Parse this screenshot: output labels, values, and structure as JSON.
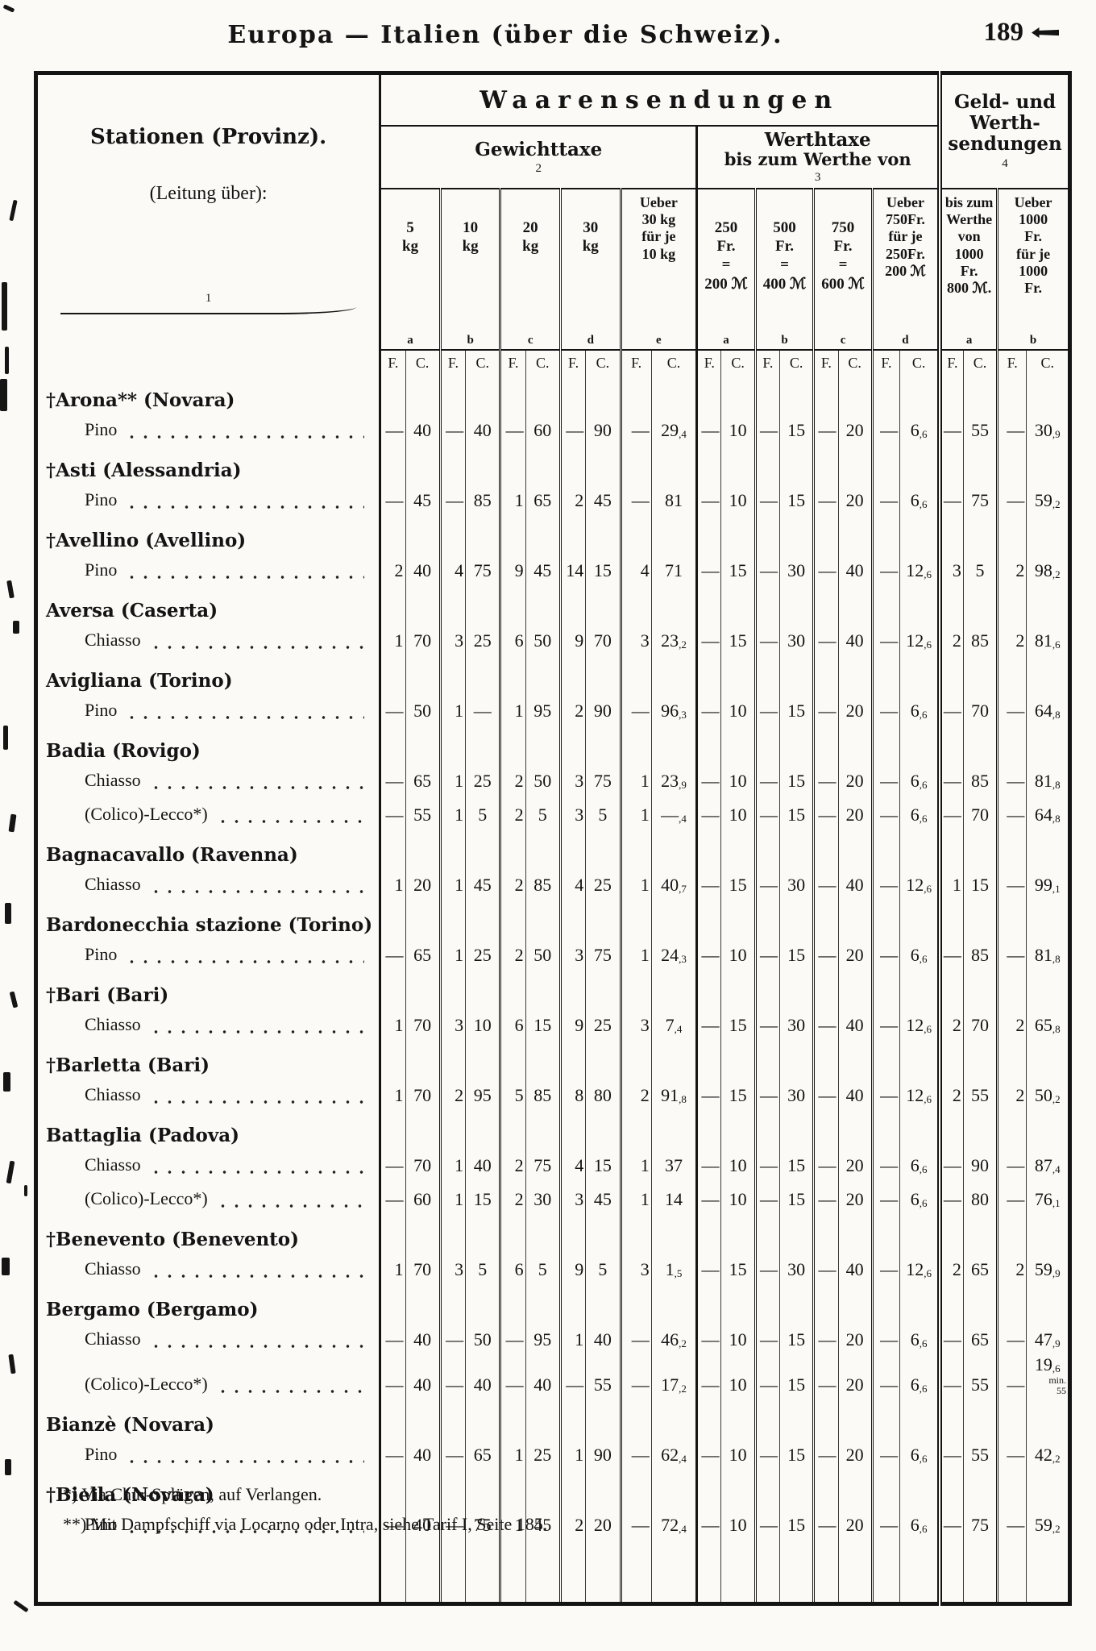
{
  "page": {
    "title": "Europa — Italien (über die Schweiz).",
    "number": "189"
  },
  "header": {
    "station_col": {
      "line1": "Stationen (Provinz).",
      "line2": "(Leitung über):",
      "col_no": "1"
    },
    "waaren_label": "Waarensendungen",
    "gewicht": {
      "label": "Gewichttaxe",
      "col_no": "2",
      "columns": [
        {
          "label": "5\nkg",
          "letter": "a"
        },
        {
          "label": "10\nkg",
          "letter": "b"
        },
        {
          "label": "20\nkg",
          "letter": "c"
        },
        {
          "label": "30\nkg",
          "letter": "d"
        },
        {
          "label": "Ueber\n30 kg\nfür je\n10 kg",
          "letter": "e"
        }
      ]
    },
    "werth": {
      "label": "Werthtaxe",
      "sublabel": "bis zum Werthe von",
      "col_no": "3",
      "columns": [
        {
          "label": "250\nFr.\n=\n200 ℳ",
          "letter": "a"
        },
        {
          "label": "500\nFr.\n=\n400 ℳ",
          "letter": "b"
        },
        {
          "label": "750\nFr.\n=\n600 ℳ",
          "letter": "c"
        },
        {
          "label": "Ueber\n750Fr.\nfür je\n250Fr.\n200 ℳ",
          "letter": "d"
        }
      ]
    },
    "geld": {
      "label": "Geld- und\nWerth-\nsendungen",
      "col_no": "4",
      "columns": [
        {
          "label": "bis zum\nWerthe\nvon\n1000\nFr.\n800 ℳ.",
          "letter": "a"
        },
        {
          "label": "Ueber\n1000\nFr.\nfür je\n1000\nFr.",
          "letter": "b"
        }
      ]
    },
    "fc": {
      "f": "F.",
      "c": "C."
    }
  },
  "stations": [
    {
      "title": "†Arona** (Novara)",
      "routes": [
        {
          "label": "Pino",
          "values": [
            [
              "—",
              "40"
            ],
            [
              "—",
              "40"
            ],
            [
              "—",
              "60"
            ],
            [
              "—",
              "90"
            ],
            [
              "—",
              "29,4"
            ],
            [
              "—",
              "10"
            ],
            [
              "—",
              "15"
            ],
            [
              "—",
              "20"
            ],
            [
              "—",
              "6,6"
            ],
            [
              "—",
              "55"
            ],
            [
              "—",
              "30,9"
            ]
          ]
        }
      ]
    },
    {
      "title": "†Asti (Alessandria)",
      "routes": [
        {
          "label": "Pino",
          "values": [
            [
              "—",
              "45"
            ],
            [
              "—",
              "85"
            ],
            [
              "1",
              "65"
            ],
            [
              "2",
              "45"
            ],
            [
              "—",
              "81"
            ],
            [
              "—",
              "10"
            ],
            [
              "—",
              "15"
            ],
            [
              "—",
              "20"
            ],
            [
              "—",
              "6,6"
            ],
            [
              "—",
              "75"
            ],
            [
              "—",
              "59,2"
            ]
          ]
        }
      ]
    },
    {
      "title": "†Avellino (Avellino)",
      "routes": [
        {
          "label": "Pino",
          "values": [
            [
              "2",
              "40"
            ],
            [
              "4",
              "75"
            ],
            [
              "9",
              "45"
            ],
            [
              "14",
              "15"
            ],
            [
              "4",
              "71"
            ],
            [
              "—",
              "15"
            ],
            [
              "—",
              "30"
            ],
            [
              "—",
              "40"
            ],
            [
              "—",
              "12,6"
            ],
            [
              "3",
              "5"
            ],
            [
              "2",
              "98,2"
            ]
          ]
        }
      ]
    },
    {
      "title": "Aversa (Caserta)",
      "routes": [
        {
          "label": "Chiasso",
          "values": [
            [
              "1",
              "70"
            ],
            [
              "3",
              "25"
            ],
            [
              "6",
              "50"
            ],
            [
              "9",
              "70"
            ],
            [
              "3",
              "23,2"
            ],
            [
              "—",
              "15"
            ],
            [
              "—",
              "30"
            ],
            [
              "—",
              "40"
            ],
            [
              "—",
              "12,6"
            ],
            [
              "2",
              "85"
            ],
            [
              "2",
              "81,6"
            ]
          ]
        }
      ]
    },
    {
      "title": "Avigliana (Torino)",
      "routes": [
        {
          "label": "Pino",
          "values": [
            [
              "—",
              "50"
            ],
            [
              "1",
              "—"
            ],
            [
              "1",
              "95"
            ],
            [
              "2",
              "90"
            ],
            [
              "—",
              "96,3"
            ],
            [
              "—",
              "10"
            ],
            [
              "—",
              "15"
            ],
            [
              "—",
              "20"
            ],
            [
              "—",
              "6,6"
            ],
            [
              "—",
              "70"
            ],
            [
              "—",
              "64,8"
            ]
          ]
        }
      ]
    },
    {
      "title": "Badia (Rovigo)",
      "routes": [
        {
          "label": "Chiasso",
          "values": [
            [
              "—",
              "65"
            ],
            [
              "1",
              "25"
            ],
            [
              "2",
              "50"
            ],
            [
              "3",
              "75"
            ],
            [
              "1",
              "23,9"
            ],
            [
              "—",
              "10"
            ],
            [
              "—",
              "15"
            ],
            [
              "—",
              "20"
            ],
            [
              "—",
              "6,6"
            ],
            [
              "—",
              "85"
            ],
            [
              "—",
              "81,8"
            ]
          ]
        },
        {
          "label": "(Colico)-Lecco*)",
          "values": [
            [
              "—",
              "55"
            ],
            [
              "1",
              "5"
            ],
            [
              "2",
              "5"
            ],
            [
              "3",
              "5"
            ],
            [
              "1",
              "—,4"
            ],
            [
              "—",
              "10"
            ],
            [
              "—",
              "15"
            ],
            [
              "—",
              "20"
            ],
            [
              "—",
              "6,6"
            ],
            [
              "—",
              "70"
            ],
            [
              "—",
              "64,8"
            ]
          ]
        }
      ]
    },
    {
      "title": "Bagnacavallo (Ravenna)",
      "routes": [
        {
          "label": "Chiasso",
          "values": [
            [
              "1",
              "20"
            ],
            [
              "1",
              "45"
            ],
            [
              "2",
              "85"
            ],
            [
              "4",
              "25"
            ],
            [
              "1",
              "40,7"
            ],
            [
              "—",
              "15"
            ],
            [
              "—",
              "30"
            ],
            [
              "—",
              "40"
            ],
            [
              "—",
              "12,6"
            ],
            [
              "1",
              "15"
            ],
            [
              "—",
              "99,1"
            ]
          ]
        }
      ]
    },
    {
      "title": "Bardonecchia stazione (Torino)",
      "routes": [
        {
          "label": "Pino",
          "values": [
            [
              "—",
              "65"
            ],
            [
              "1",
              "25"
            ],
            [
              "2",
              "50"
            ],
            [
              "3",
              "75"
            ],
            [
              "1",
              "24,3"
            ],
            [
              "—",
              "10"
            ],
            [
              "—",
              "15"
            ],
            [
              "—",
              "20"
            ],
            [
              "—",
              "6,6"
            ],
            [
              "—",
              "85"
            ],
            [
              "—",
              "81,8"
            ]
          ]
        }
      ]
    },
    {
      "title": "†Bari (Bari)",
      "routes": [
        {
          "label": "Chiasso",
          "values": [
            [
              "1",
              "70"
            ],
            [
              "3",
              "10"
            ],
            [
              "6",
              "15"
            ],
            [
              "9",
              "25"
            ],
            [
              "3",
              "7,4"
            ],
            [
              "—",
              "15"
            ],
            [
              "—",
              "30"
            ],
            [
              "—",
              "40"
            ],
            [
              "—",
              "12,6"
            ],
            [
              "2",
              "70"
            ],
            [
              "2",
              "65,8"
            ]
          ]
        }
      ]
    },
    {
      "title": "†Barletta (Bari)",
      "routes": [
        {
          "label": "Chiasso",
          "values": [
            [
              "1",
              "70"
            ],
            [
              "2",
              "95"
            ],
            [
              "5",
              "85"
            ],
            [
              "8",
              "80"
            ],
            [
              "2",
              "91,8"
            ],
            [
              "—",
              "15"
            ],
            [
              "—",
              "30"
            ],
            [
              "—",
              "40"
            ],
            [
              "—",
              "12,6"
            ],
            [
              "2",
              "55"
            ],
            [
              "2",
              "50,2"
            ]
          ]
        }
      ]
    },
    {
      "title": "Battaglia (Padova)",
      "routes": [
        {
          "label": "Chiasso",
          "values": [
            [
              "—",
              "70"
            ],
            [
              "1",
              "40"
            ],
            [
              "2",
              "75"
            ],
            [
              "4",
              "15"
            ],
            [
              "1",
              "37"
            ],
            [
              "—",
              "10"
            ],
            [
              "—",
              "15"
            ],
            [
              "—",
              "20"
            ],
            [
              "—",
              "6,6"
            ],
            [
              "—",
              "90"
            ],
            [
              "—",
              "87,4"
            ]
          ]
        },
        {
          "label": "(Colico)-Lecco*)",
          "values": [
            [
              "—",
              "60"
            ],
            [
              "1",
              "15"
            ],
            [
              "2",
              "30"
            ],
            [
              "3",
              "45"
            ],
            [
              "1",
              "14"
            ],
            [
              "—",
              "10"
            ],
            [
              "—",
              "15"
            ],
            [
              "—",
              "20"
            ],
            [
              "—",
              "6,6"
            ],
            [
              "—",
              "80"
            ],
            [
              "—",
              "76,1"
            ]
          ]
        }
      ]
    },
    {
      "title": "†Benevento (Benevento)",
      "routes": [
        {
          "label": "Chiasso",
          "values": [
            [
              "1",
              "70"
            ],
            [
              "3",
              "5"
            ],
            [
              "6",
              "5"
            ],
            [
              "9",
              "5"
            ],
            [
              "3",
              "1,5"
            ],
            [
              "—",
              "15"
            ],
            [
              "—",
              "30"
            ],
            [
              "—",
              "40"
            ],
            [
              "—",
              "12,6"
            ],
            [
              "2",
              "65"
            ],
            [
              "2",
              "59,9"
            ]
          ]
        }
      ]
    },
    {
      "title": "Bergamo (Bergamo)",
      "routes": [
        {
          "label": "Chiasso",
          "values": [
            [
              "—",
              "40"
            ],
            [
              "—",
              "50"
            ],
            [
              "—",
              "95"
            ],
            [
              "1",
              "40"
            ],
            [
              "—",
              "46,2"
            ],
            [
              "—",
              "10"
            ],
            [
              "—",
              "15"
            ],
            [
              "—",
              "20"
            ],
            [
              "—",
              "6,6"
            ],
            [
              "—",
              "65"
            ],
            [
              "—",
              "47,9"
            ]
          ]
        },
        {
          "label": "(Colico)-Lecco*)",
          "note": "min.\n55",
          "values": [
            [
              "—",
              "40"
            ],
            [
              "—",
              "40"
            ],
            [
              "—",
              "40"
            ],
            [
              "—",
              "55"
            ],
            [
              "—",
              "17,2"
            ],
            [
              "—",
              "10"
            ],
            [
              "—",
              "15"
            ],
            [
              "—",
              "20"
            ],
            [
              "—",
              "6,6"
            ],
            [
              "—",
              "55"
            ],
            [
              "—",
              "19,6"
            ]
          ]
        }
      ]
    },
    {
      "title": "Bianzè (Novara)",
      "routes": [
        {
          "label": "Pino",
          "values": [
            [
              "—",
              "40"
            ],
            [
              "—",
              "65"
            ],
            [
              "1",
              "25"
            ],
            [
              "1",
              "90"
            ],
            [
              "—",
              "62,4"
            ],
            [
              "—",
              "10"
            ],
            [
              "—",
              "15"
            ],
            [
              "—",
              "20"
            ],
            [
              "—",
              "6,6"
            ],
            [
              "—",
              "55"
            ],
            [
              "—",
              "42,2"
            ]
          ]
        }
      ]
    },
    {
      "title": "†Biella (Novara)",
      "routes": [
        {
          "label": "Pino",
          "values": [
            [
              "—",
              "40"
            ],
            [
              "—",
              "75"
            ],
            [
              "1",
              "45"
            ],
            [
              "2",
              "20"
            ],
            [
              "—",
              "72,4"
            ],
            [
              "—",
              "10"
            ],
            [
              "—",
              "15"
            ],
            [
              "—",
              "20"
            ],
            [
              "—",
              "6,6"
            ],
            [
              "—",
              "75"
            ],
            [
              "—",
              "59,2"
            ]
          ]
        }
      ]
    }
  ],
  "footnotes": [
    "*) Via Chur-Splügen, auf Verlangen.",
    "**) Mit Dampfschiff via Locarno oder Intra, siehe Tarif I, Seite 185."
  ]
}
